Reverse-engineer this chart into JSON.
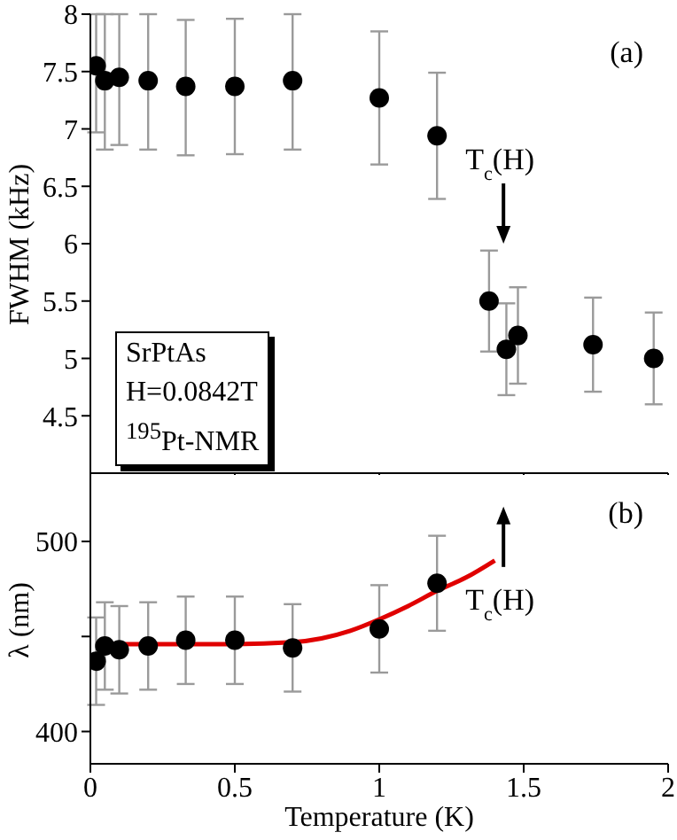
{
  "chart_data": [
    {
      "type": "scatter",
      "ylabel": "FWHM (kHz)",
      "xlim": [
        0,
        2
      ],
      "xticks": [
        0,
        0.5,
        1,
        1.5,
        2
      ],
      "ylim": [
        4,
        8
      ],
      "yticks": [
        4.5,
        5,
        5.5,
        6,
        6.5,
        7,
        7.5,
        8
      ],
      "tick_labels": "y",
      "marker": "circle",
      "grid": false,
      "annotations": [
        "(a)",
        "SrPtAs",
        "H=0.0842T",
        "$^{195}$Pt-NMR",
        "T$_{c}$(H)"
      ],
      "series": [
        {
          "color": "#000000",
          "x": [
            0.02,
            0.05,
            0.1,
            0.2,
            0.33,
            0.5,
            0.7,
            1.0,
            1.2,
            1.38,
            1.44,
            1.48,
            1.74,
            1.95
          ],
          "values": [
            7.55,
            7.42,
            7.45,
            7.42,
            7.37,
            7.37,
            7.42,
            7.27,
            6.94,
            5.5,
            5.08,
            5.2,
            5.12,
            5.0
          ],
          "errors": [
            [
              6.97,
              8
            ],
            [
              6.82,
              8
            ],
            [
              6.86,
              8
            ],
            [
              6.82,
              8
            ],
            [
              6.77,
              7.95
            ],
            [
              6.78,
              7.96
            ],
            [
              6.82,
              8
            ],
            0.58,
            0.55,
            0.44,
            0.4,
            0.42,
            0.41,
            0.4
          ]
        }
      ]
    },
    {
      "type": "scatter",
      "ylabel": "λ (nm)",
      "xlabel": "Temperature (K)",
      "xlim": [
        0,
        2
      ],
      "xticks": [
        0,
        0.5,
        1,
        1.5,
        2
      ],
      "ylim": [
        383,
        535
      ],
      "yticks": [
        400,
        {
          "value": 450,
          "label": null
        },
        500
      ],
      "marker": "circle",
      "grid": false,
      "annotations": [
        "(b)",
        "T$_{c}$(H)"
      ],
      "series": [
        {
          "color": "#000000",
          "x": [
            0.02,
            0.05,
            0.1,
            0.2,
            0.33,
            0.5,
            0.7,
            1.0,
            1.2
          ],
          "values": [
            437,
            445,
            443,
            445,
            448,
            448,
            444,
            454,
            478
          ],
          "errors": [
            23,
            23,
            23,
            23,
            23,
            23,
            23,
            23,
            25
          ]
        },
        {
          "type": "line",
          "color": "#e00000",
          "marker": "none",
          "x": [
            0.02,
            0.3,
            0.5,
            0.7,
            0.8,
            0.9,
            1.0,
            1.1,
            1.2,
            1.3,
            1.4
          ],
          "values": [
            446,
            446,
            446,
            447,
            449,
            453,
            459,
            466,
            474,
            481,
            490
          ]
        }
      ]
    }
  ]
}
